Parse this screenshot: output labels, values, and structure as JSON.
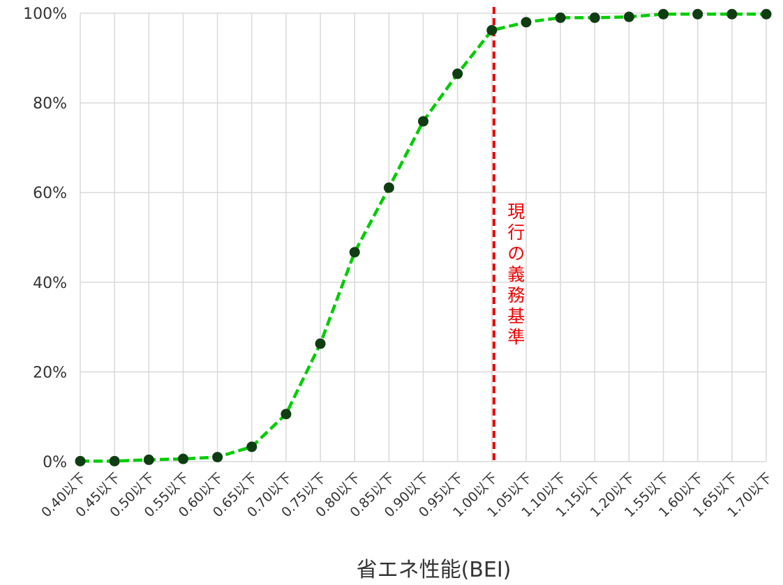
{
  "chart_data": {
    "type": "line",
    "xlabel": "省エネ性能(BEI)",
    "ylabel": "",
    "ylim": [
      0,
      100
    ],
    "yticks": [
      "0%",
      "20%",
      "40%",
      "60%",
      "80%",
      "100%"
    ],
    "yticks_values": [
      0,
      20,
      40,
      60,
      80,
      100
    ],
    "grid": true,
    "categories": [
      "0.40以下",
      "0.45以下",
      "0.50以下",
      "0.55以下",
      "0.60以下",
      "0.65以下",
      "0.70以下",
      "0.75以下",
      "0.80以下",
      "0.85以下",
      "0.90以下",
      "0.95以下",
      "1.00以下",
      "1.05以下",
      "1.10以下",
      "1.15以下",
      "1.20以下",
      "1.55以下",
      "1.60以下",
      "1.65以下",
      "1.70以下"
    ],
    "series": [
      {
        "values": [
          0.1,
          0.1,
          0.4,
          0.6,
          1.0,
          3.3,
          10.6,
          26.3,
          46.7,
          61.1,
          75.9,
          86.5,
          96.2,
          98.0,
          99.0,
          99.0,
          99.2,
          99.8,
          99.8,
          99.8,
          99.8
        ]
      }
    ],
    "annotations": [
      {
        "text": "現行の義務基準",
        "x_category": "1.00以下",
        "color": "#ee0000"
      }
    ],
    "colors": {
      "line": "#00cc00",
      "marker": "#0f3d12",
      "reference": "#ee0000",
      "grid": "#d9d9d9"
    }
  }
}
